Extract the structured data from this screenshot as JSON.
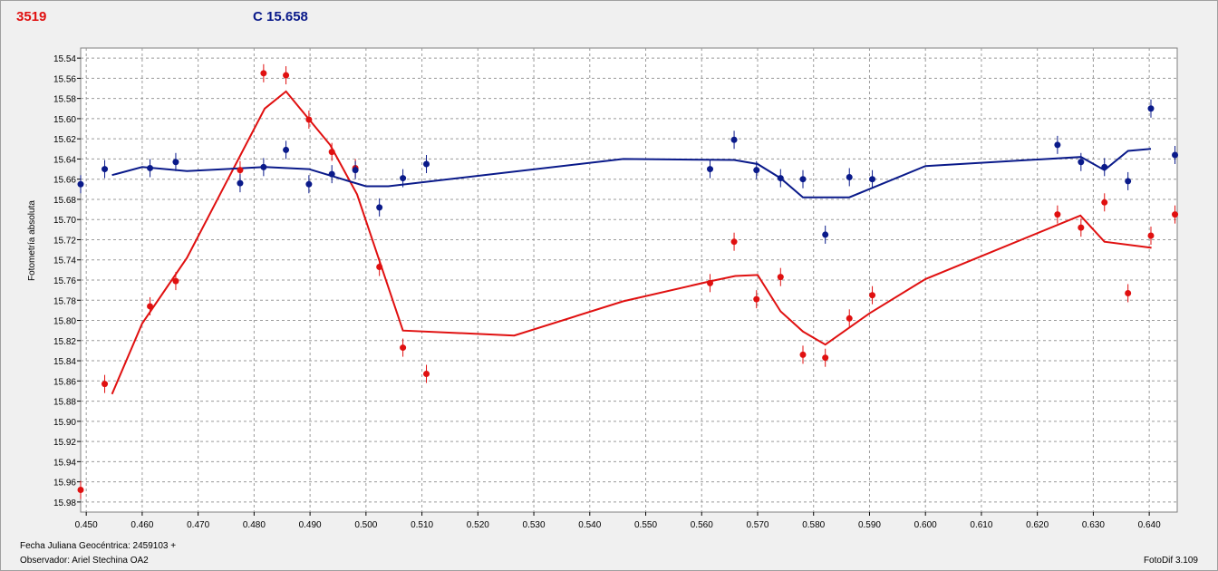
{
  "header": {
    "star_id": "3519",
    "comparison": "C 15.658"
  },
  "footer": {
    "jd_label": "Fecha Juliana Geocéntrica: 2459103 +",
    "observer": "Observador: Ariel Stechina OA2",
    "software": "FotoDif 3.109"
  },
  "chart_data": {
    "type": "scatter",
    "title": "",
    "xlabel": "",
    "ylabel": "Fotometría absoluta",
    "xlim": [
      0.449,
      0.645
    ],
    "ylim": [
      15.99,
      15.53
    ],
    "y_inverted": true,
    "grid": true,
    "x_ticks": [
      "0.450",
      "0.460",
      "0.470",
      "0.480",
      "0.490",
      "0.500",
      "0.510",
      "0.520",
      "0.530",
      "0.540",
      "0.550",
      "0.560",
      "0.570",
      "0.580",
      "0.590",
      "0.600",
      "0.610",
      "0.620",
      "0.630",
      "0.640"
    ],
    "y_ticks": [
      "15.54",
      "15.56",
      "15.58",
      "15.60",
      "15.62",
      "15.64",
      "15.66",
      "15.68",
      "15.70",
      "15.72",
      "15.74",
      "15.76",
      "15.78",
      "15.80",
      "15.82",
      "15.84",
      "15.86",
      "15.88",
      "15.90",
      "15.92",
      "15.94",
      "15.96",
      "15.98"
    ],
    "series": [
      {
        "color": "#e01010",
        "points": [
          [
            0.449,
            15.968
          ],
          [
            0.4533,
            15.863
          ],
          [
            0.4614,
            15.786
          ],
          [
            0.466,
            15.761
          ],
          [
            0.4775,
            15.651
          ],
          [
            0.4817,
            15.555
          ],
          [
            0.4857,
            15.557
          ],
          [
            0.4898,
            15.601
          ],
          [
            0.4939,
            15.633
          ],
          [
            0.4981,
            15.649
          ],
          [
            0.5024,
            15.747
          ],
          [
            0.5066,
            15.827
          ],
          [
            0.5108,
            15.853
          ],
          [
            0.5615,
            15.763
          ],
          [
            0.5658,
            15.722
          ],
          [
            0.5698,
            15.779
          ],
          [
            0.5741,
            15.757
          ],
          [
            0.5781,
            15.834
          ],
          [
            0.5821,
            15.837
          ],
          [
            0.5864,
            15.798
          ],
          [
            0.5905,
            15.775
          ],
          [
            0.6236,
            15.695
          ],
          [
            0.6278,
            15.708
          ],
          [
            0.632,
            15.683
          ],
          [
            0.6362,
            15.773
          ],
          [
            0.6403,
            15.716
          ],
          [
            0.6446,
            15.695
          ]
        ],
        "trend": [
          [
            0.4546,
            15.873
          ],
          [
            0.46,
            15.803
          ],
          [
            0.468,
            15.738
          ],
          [
            0.4819,
            15.59
          ],
          [
            0.4857,
            15.573
          ],
          [
            0.4936,
            15.626
          ],
          [
            0.4984,
            15.675
          ],
          [
            0.5066,
            15.81
          ],
          [
            0.5265,
            15.815
          ],
          [
            0.546,
            15.781
          ],
          [
            0.5617,
            15.761
          ],
          [
            0.566,
            15.756
          ],
          [
            0.57,
            15.755
          ],
          [
            0.5741,
            15.791
          ],
          [
            0.5781,
            15.811
          ],
          [
            0.5821,
            15.824
          ],
          [
            0.59,
            15.793
          ],
          [
            0.6,
            15.759
          ],
          [
            0.6277,
            15.696
          ],
          [
            0.632,
            15.722
          ],
          [
            0.6404,
            15.728
          ]
        ]
      },
      {
        "color": "#0a1a8a",
        "points": [
          [
            0.449,
            15.665
          ],
          [
            0.4533,
            15.65
          ],
          [
            0.4614,
            15.649
          ],
          [
            0.466,
            15.643
          ],
          [
            0.4775,
            15.664
          ],
          [
            0.4817,
            15.648
          ],
          [
            0.4857,
            15.631
          ],
          [
            0.4898,
            15.665
          ],
          [
            0.4939,
            15.655
          ],
          [
            0.4981,
            15.651
          ],
          [
            0.5024,
            15.688
          ],
          [
            0.5066,
            15.659
          ],
          [
            0.5108,
            15.645
          ],
          [
            0.5615,
            15.65
          ],
          [
            0.5658,
            15.621
          ],
          [
            0.5698,
            15.651
          ],
          [
            0.5741,
            15.659
          ],
          [
            0.5781,
            15.66
          ],
          [
            0.5821,
            15.715
          ],
          [
            0.5864,
            15.658
          ],
          [
            0.5905,
            15.66
          ],
          [
            0.6236,
            15.626
          ],
          [
            0.6278,
            15.643
          ],
          [
            0.632,
            15.648
          ],
          [
            0.6362,
            15.662
          ],
          [
            0.6403,
            15.59
          ],
          [
            0.6446,
            15.636
          ]
        ],
        "trend": [
          [
            0.4546,
            15.656
          ],
          [
            0.46,
            15.648
          ],
          [
            0.468,
            15.652
          ],
          [
            0.4819,
            15.648
          ],
          [
            0.4898,
            15.65
          ],
          [
            0.5,
            15.667
          ],
          [
            0.504,
            15.667
          ],
          [
            0.546,
            15.64
          ],
          [
            0.5658,
            15.641
          ],
          [
            0.57,
            15.645
          ],
          [
            0.5741,
            15.659
          ],
          [
            0.5781,
            15.678
          ],
          [
            0.5864,
            15.678
          ],
          [
            0.6,
            15.647
          ],
          [
            0.6278,
            15.638
          ],
          [
            0.632,
            15.651
          ],
          [
            0.6362,
            15.632
          ],
          [
            0.6403,
            15.63
          ]
        ]
      }
    ]
  }
}
